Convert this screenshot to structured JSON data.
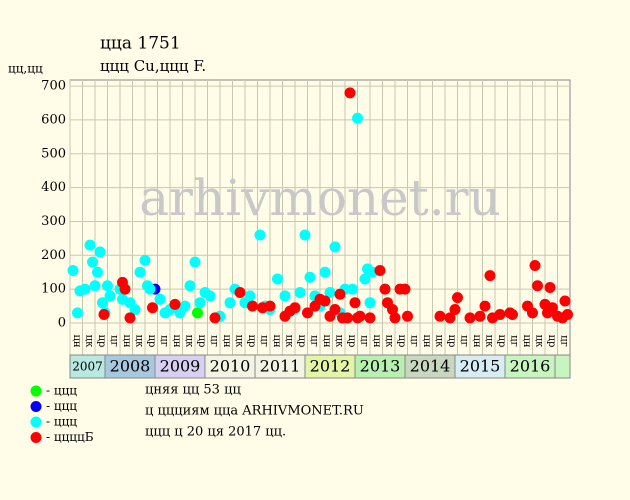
{
  "chart_data": {
    "type": "scatter",
    "title": "ццa 1751",
    "subtitle": "ццц Cu,ццц F.",
    "y_label": "цц,цц",
    "watermark": "arhivmonet.ru",
    "xlim": [
      2007.3,
      2017.3
    ],
    "ylim": [
      0,
      718
    ],
    "yticks": [
      0,
      100,
      200,
      300,
      400,
      500,
      600,
      700
    ],
    "grid": true,
    "years": [
      2007,
      2008,
      2009,
      2010,
      2011,
      2012,
      2013,
      2014,
      2015,
      2016
    ],
    "year_colors": [
      "#b8e8e0",
      "#a8c8e0",
      "#d8d0f0",
      "#f4f4e4",
      "#f4f4e4",
      "#e4f4a8",
      "#b8f0b0",
      "#c8d8c0",
      "#d8ecf4",
      "#c8f4c0"
    ],
    "column_labels": [
      "цн",
      "цк",
      "цр",
      "цг",
      "цн",
      "цк",
      "цр",
      "цг",
      "цн",
      "цк",
      "цр",
      "цг",
      "цн",
      "цк",
      "цр",
      "цг",
      "цн",
      "цк",
      "цр",
      "цг",
      "цн",
      "цк",
      "цр",
      "цг",
      "цн",
      "цк",
      "цр",
      "цг",
      "цн",
      "цк",
      "цр",
      "цг",
      "цн",
      "цк",
      "цр",
      "цг",
      "цн",
      "цк",
      "цр",
      "цг"
    ],
    "series": [
      {
        "name": "- ццц",
        "color": "#00ff00",
        "x": [
          2009.85
        ],
        "values": [
          30
        ]
      },
      {
        "name": "- ццц",
        "color": "#0000ff",
        "x": [
          2009.0
        ],
        "values": [
          100
        ]
      },
      {
        "name": "- ццц",
        "color": "#00ffff",
        "x": [
          2007.36,
          2007.5,
          2007.6,
          2007.7,
          2007.75,
          2007.8,
          2007.85,
          2007.9,
          2007.95,
          2008.05,
          2008.1,
          2008.3,
          2008.35,
          2008.5,
          2008.7,
          2008.8,
          2008.85,
          2008.9,
          2009.1,
          2009.3,
          2009.6,
          2009.7,
          2009.8,
          2009.9,
          2010.0,
          2010.1,
          2010.5,
          2010.6,
          2010.8,
          2010.9,
          2011.1,
          2011.2,
          2011.45,
          2011.6,
          2011.9,
          2012.0,
          2012.1,
          2012.2,
          2012.4,
          2012.6,
          2012.5,
          2012.8,
          2012.95,
          2013.05,
          2013.2,
          2013.25,
          2013.3,
          2013.35,
          2007.45,
          2008.0,
          2008.6,
          2009.2,
          2009.5,
          2010.3,
          2011.3,
          2011.8,
          2012.3,
          2012.7
        ],
        "values": [
          155,
          95,
          100,
          230,
          180,
          110,
          150,
          210,
          60,
          110,
          80,
          100,
          70,
          60,
          150,
          185,
          110,
          100,
          70,
          40,
          50,
          110,
          180,
          60,
          90,
          80,
          60,
          100,
          60,
          80,
          260,
          50,
          130,
          80,
          90,
          260,
          135,
          80,
          150,
          225,
          90,
          100,
          100,
          605,
          130,
          160,
          60,
          150,
          30,
          30,
          40,
          30,
          30,
          20,
          40,
          40,
          50,
          30
        ]
      },
      {
        "name": "- ццццБ",
        "color": "#ff0000",
        "x": [
          2007.98,
          2008.35,
          2008.4,
          2008.5,
          2008.95,
          2009.4,
          2010.2,
          2010.7,
          2010.95,
          2011.15,
          2011.3,
          2011.6,
          2011.7,
          2011.8,
          2012.05,
          2012.2,
          2012.3,
          2012.4,
          2012.5,
          2012.6,
          2012.7,
          2012.75,
          2012.85,
          2012.9,
          2013.0,
          2013.05,
          2013.1,
          2013.3,
          2013.5,
          2013.6,
          2013.65,
          2013.75,
          2013.8,
          2013.9,
          2014.0,
          2014.05,
          2014.7,
          2014.9,
          2015.0,
          2015.05,
          2015.3,
          2015.5,
          2015.6,
          2015.7,
          2015.75,
          2015.9,
          2016.1,
          2016.15,
          2016.45,
          2016.55,
          2016.6,
          2016.65,
          2016.8,
          2016.85,
          2016.9,
          2016.95,
          2017.05,
          2017.2,
          2017.25,
          2017.15
        ],
        "values": [
          25,
          120,
          100,
          15,
          45,
          55,
          15,
          90,
          50,
          45,
          50,
          20,
          35,
          45,
          30,
          50,
          70,
          65,
          20,
          40,
          85,
          15,
          15,
          680,
          60,
          15,
          20,
          15,
          155,
          100,
          60,
          40,
          15,
          100,
          100,
          20,
          20,
          15,
          40,
          75,
          15,
          20,
          50,
          140,
          15,
          25,
          30,
          25,
          50,
          30,
          170,
          110,
          55,
          30,
          105,
          45,
          20,
          65,
          25,
          15
        ]
      }
    ],
    "notes": [
      "цняя цц 53 цц",
      "ц ццциям цца ARHIVMONET.RU",
      "ццц ц 20 ця 2017 цц."
    ]
  }
}
